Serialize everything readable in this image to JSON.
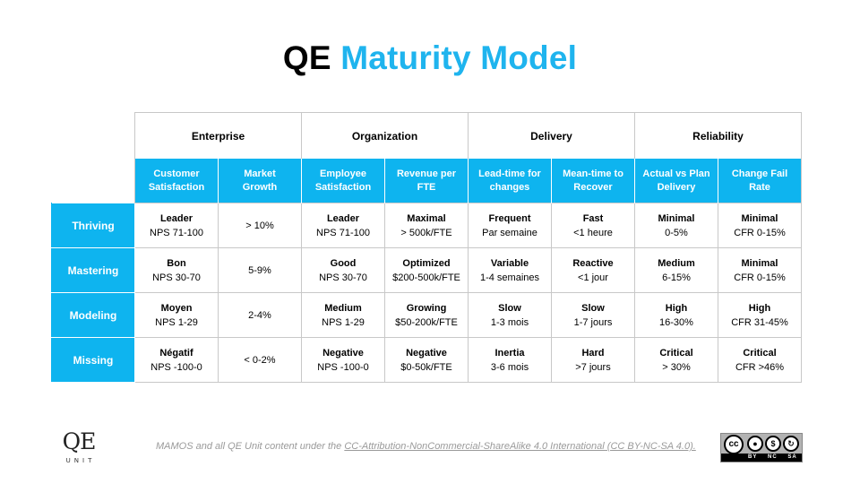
{
  "title": {
    "part1": "QE",
    "part2": "Maturity Model"
  },
  "groups": [
    "Enterprise",
    "Organization",
    "Delivery",
    "Reliability"
  ],
  "subheaders": [
    [
      "Customer",
      "Satisfaction"
    ],
    [
      "Market",
      "Growth"
    ],
    [
      "Employee",
      "Satisfaction"
    ],
    [
      "Revenue per",
      "FTE"
    ],
    [
      "Lead-time for",
      "changes"
    ],
    [
      "Mean-time to",
      "Recover"
    ],
    [
      "Actual vs Plan",
      "Delivery"
    ],
    [
      "Change Fail",
      "Rate"
    ]
  ],
  "rows": [
    {
      "level": "Thriving",
      "cells": [
        [
          "Leader",
          "NPS 71-100"
        ],
        [
          "",
          "> 10%"
        ],
        [
          "Leader",
          "NPS 71-100"
        ],
        [
          "Maximal",
          "> 500k/FTE"
        ],
        [
          "Frequent",
          "Par semaine"
        ],
        [
          "Fast",
          "<1 heure"
        ],
        [
          "Minimal",
          "0-5%"
        ],
        [
          "Minimal",
          "CFR 0-15%"
        ]
      ]
    },
    {
      "level": "Mastering",
      "cells": [
        [
          "Bon",
          "NPS 30-70"
        ],
        [
          "",
          "5-9%"
        ],
        [
          "Good",
          "NPS 30-70"
        ],
        [
          "Optimized",
          "$200-500k/FTE"
        ],
        [
          "Variable",
          "1-4 semaines"
        ],
        [
          "Reactive",
          "<1 jour"
        ],
        [
          "Medium",
          "6-15%"
        ],
        [
          "Minimal",
          "CFR 0-15%"
        ]
      ]
    },
    {
      "level": "Modeling",
      "cells": [
        [
          "Moyen",
          "NPS 1-29"
        ],
        [
          "",
          "2-4%"
        ],
        [
          "Medium",
          "NPS 1-29"
        ],
        [
          "Growing",
          "$50-200k/FTE"
        ],
        [
          "Slow",
          "1-3 mois"
        ],
        [
          "Slow",
          "1-7 jours"
        ],
        [
          "High",
          "16-30%"
        ],
        [
          "High",
          "CFR 31-45%"
        ]
      ]
    },
    {
      "level": "Missing",
      "cells": [
        [
          "Négatif",
          "NPS -100-0"
        ],
        [
          "",
          "<  0-2%"
        ],
        [
          "Negative",
          "NPS -100-0"
        ],
        [
          "Negative",
          "$0-50k/FTE"
        ],
        [
          "Inertia",
          "3-6 mois"
        ],
        [
          "Hard",
          ">7 jours"
        ],
        [
          "Critical",
          "> 30%"
        ],
        [
          "Critical",
          "CFR >46%"
        ]
      ]
    }
  ],
  "footer": {
    "logo_top": "QE",
    "logo_bottom": "UNIT",
    "license_prefix": "MAMOS and all QE Unit content under the ",
    "license_link": "CC-Attribution-NonCommercial-ShareAlike 4.0 International (CC BY-NC-SA 4.0).",
    "cc_badge": {
      "labels": [
        "BY",
        "NC",
        "SA"
      ],
      "icons": [
        "cc-icon",
        "attribution-icon",
        "noncommercial-icon",
        "sharealike-icon"
      ]
    }
  },
  "colors": {
    "accent": "#0eb4ef",
    "title_accent": "#1fb4ee",
    "grid": "#c8c8c8"
  }
}
